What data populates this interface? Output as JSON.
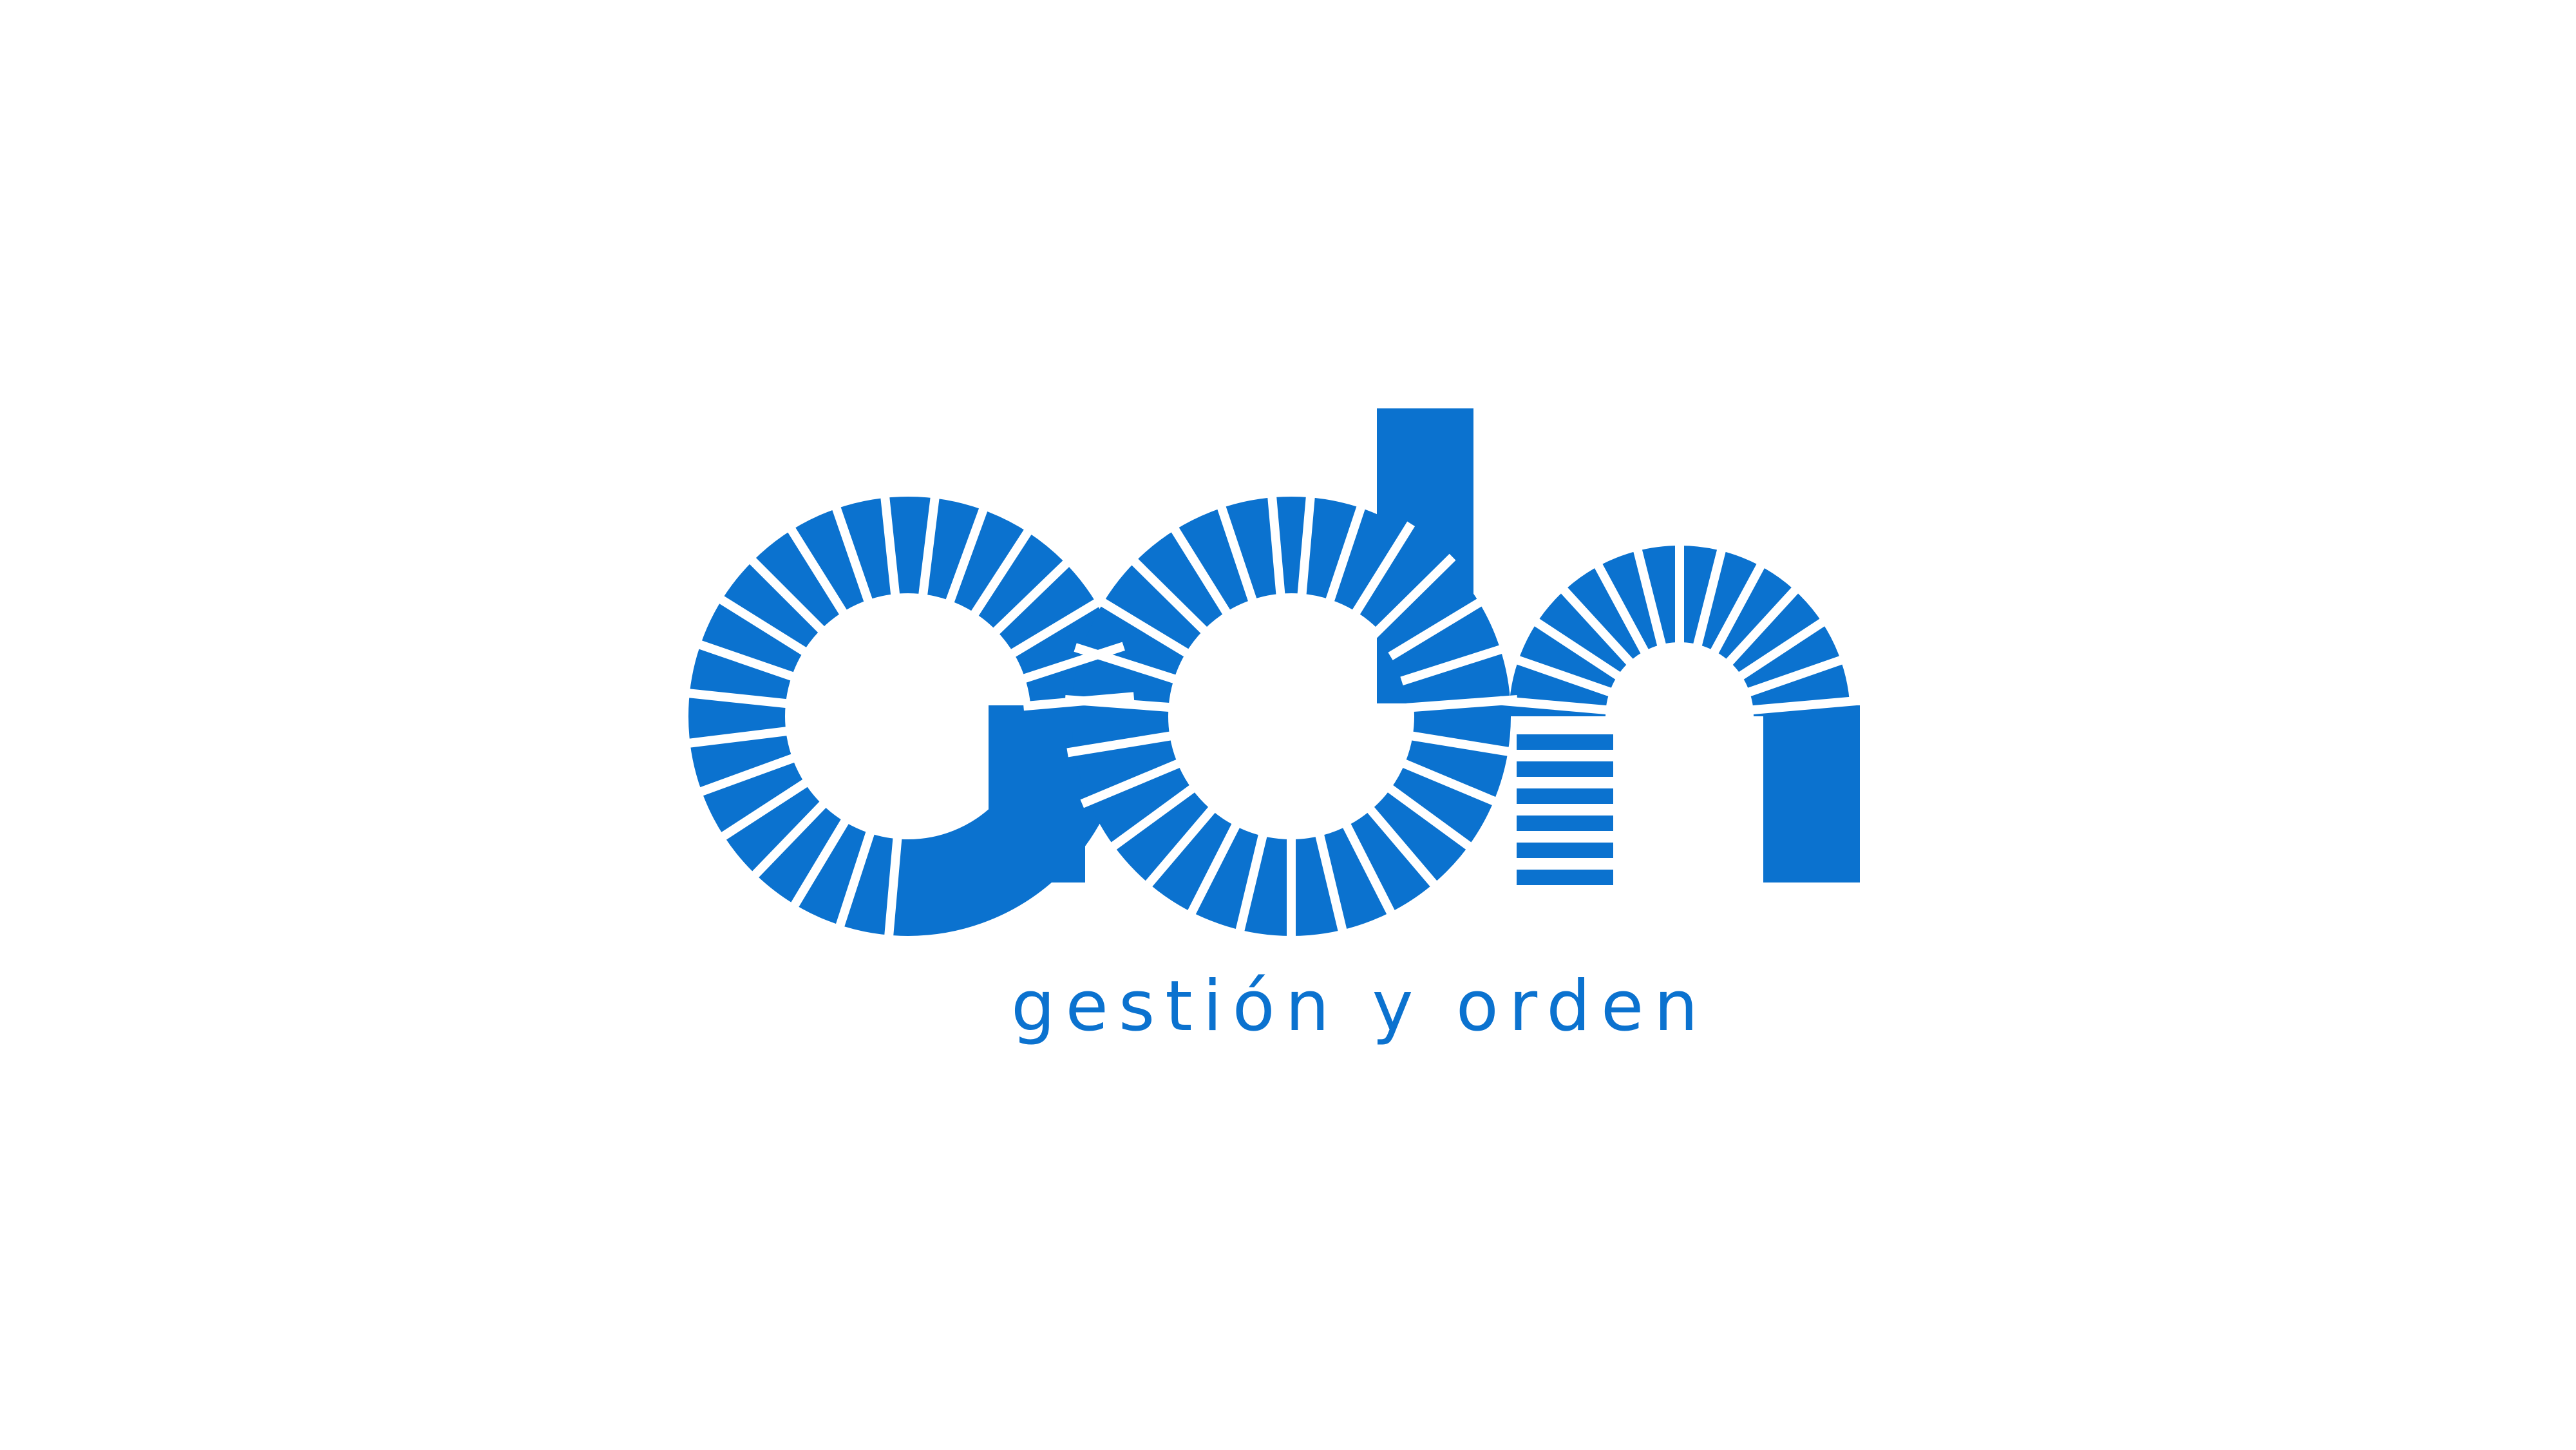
{
  "brand": {
    "logo_text": "adn",
    "tagline": "gestión y orden",
    "color": "#0b72cf",
    "background": "#ffffff"
  }
}
